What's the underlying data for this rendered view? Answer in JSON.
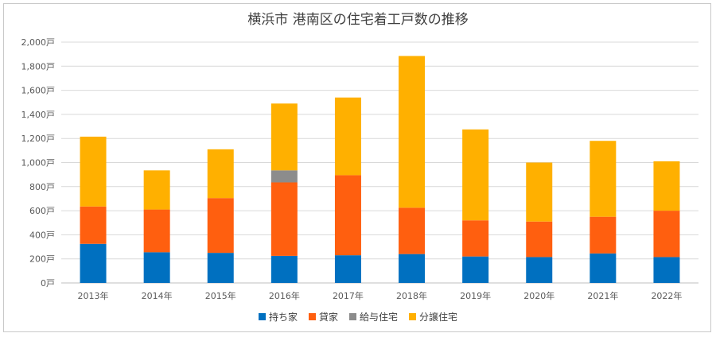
{
  "chart_data": {
    "type": "bar",
    "stacked": true,
    "title": "横浜市 港南区の住宅着工戸数の推移",
    "categories": [
      "2013年",
      "2014年",
      "2015年",
      "2016年",
      "2017年",
      "2018年",
      "2019年",
      "2020年",
      "2021年",
      "2022年"
    ],
    "y_tick_labels": [
      "0戸",
      "200戸",
      "400戸",
      "600戸",
      "800戸",
      "1,000戸",
      "1,200戸",
      "1,400戸",
      "1,600戸",
      "1,800戸",
      "2,000戸"
    ],
    "ylim": [
      0,
      2000
    ],
    "grid": true,
    "legend_position": "bottom",
    "series": [
      {
        "name": "持ち家",
        "color": "#0070c0",
        "values": [
          325,
          255,
          250,
          225,
          230,
          240,
          220,
          215,
          245,
          215
        ]
      },
      {
        "name": "貸家",
        "color": "#ff5f0f",
        "values": [
          310,
          355,
          455,
          610,
          665,
          385,
          300,
          295,
          305,
          385
        ]
      },
      {
        "name": "給与住宅",
        "color": "#8c8c8c",
        "values": [
          0,
          0,
          0,
          100,
          0,
          0,
          0,
          0,
          0,
          0
        ]
      },
      {
        "name": "分譲住宅",
        "color": "#ffb000",
        "values": [
          580,
          325,
          405,
          555,
          645,
          1260,
          755,
          490,
          630,
          410
        ]
      }
    ]
  }
}
